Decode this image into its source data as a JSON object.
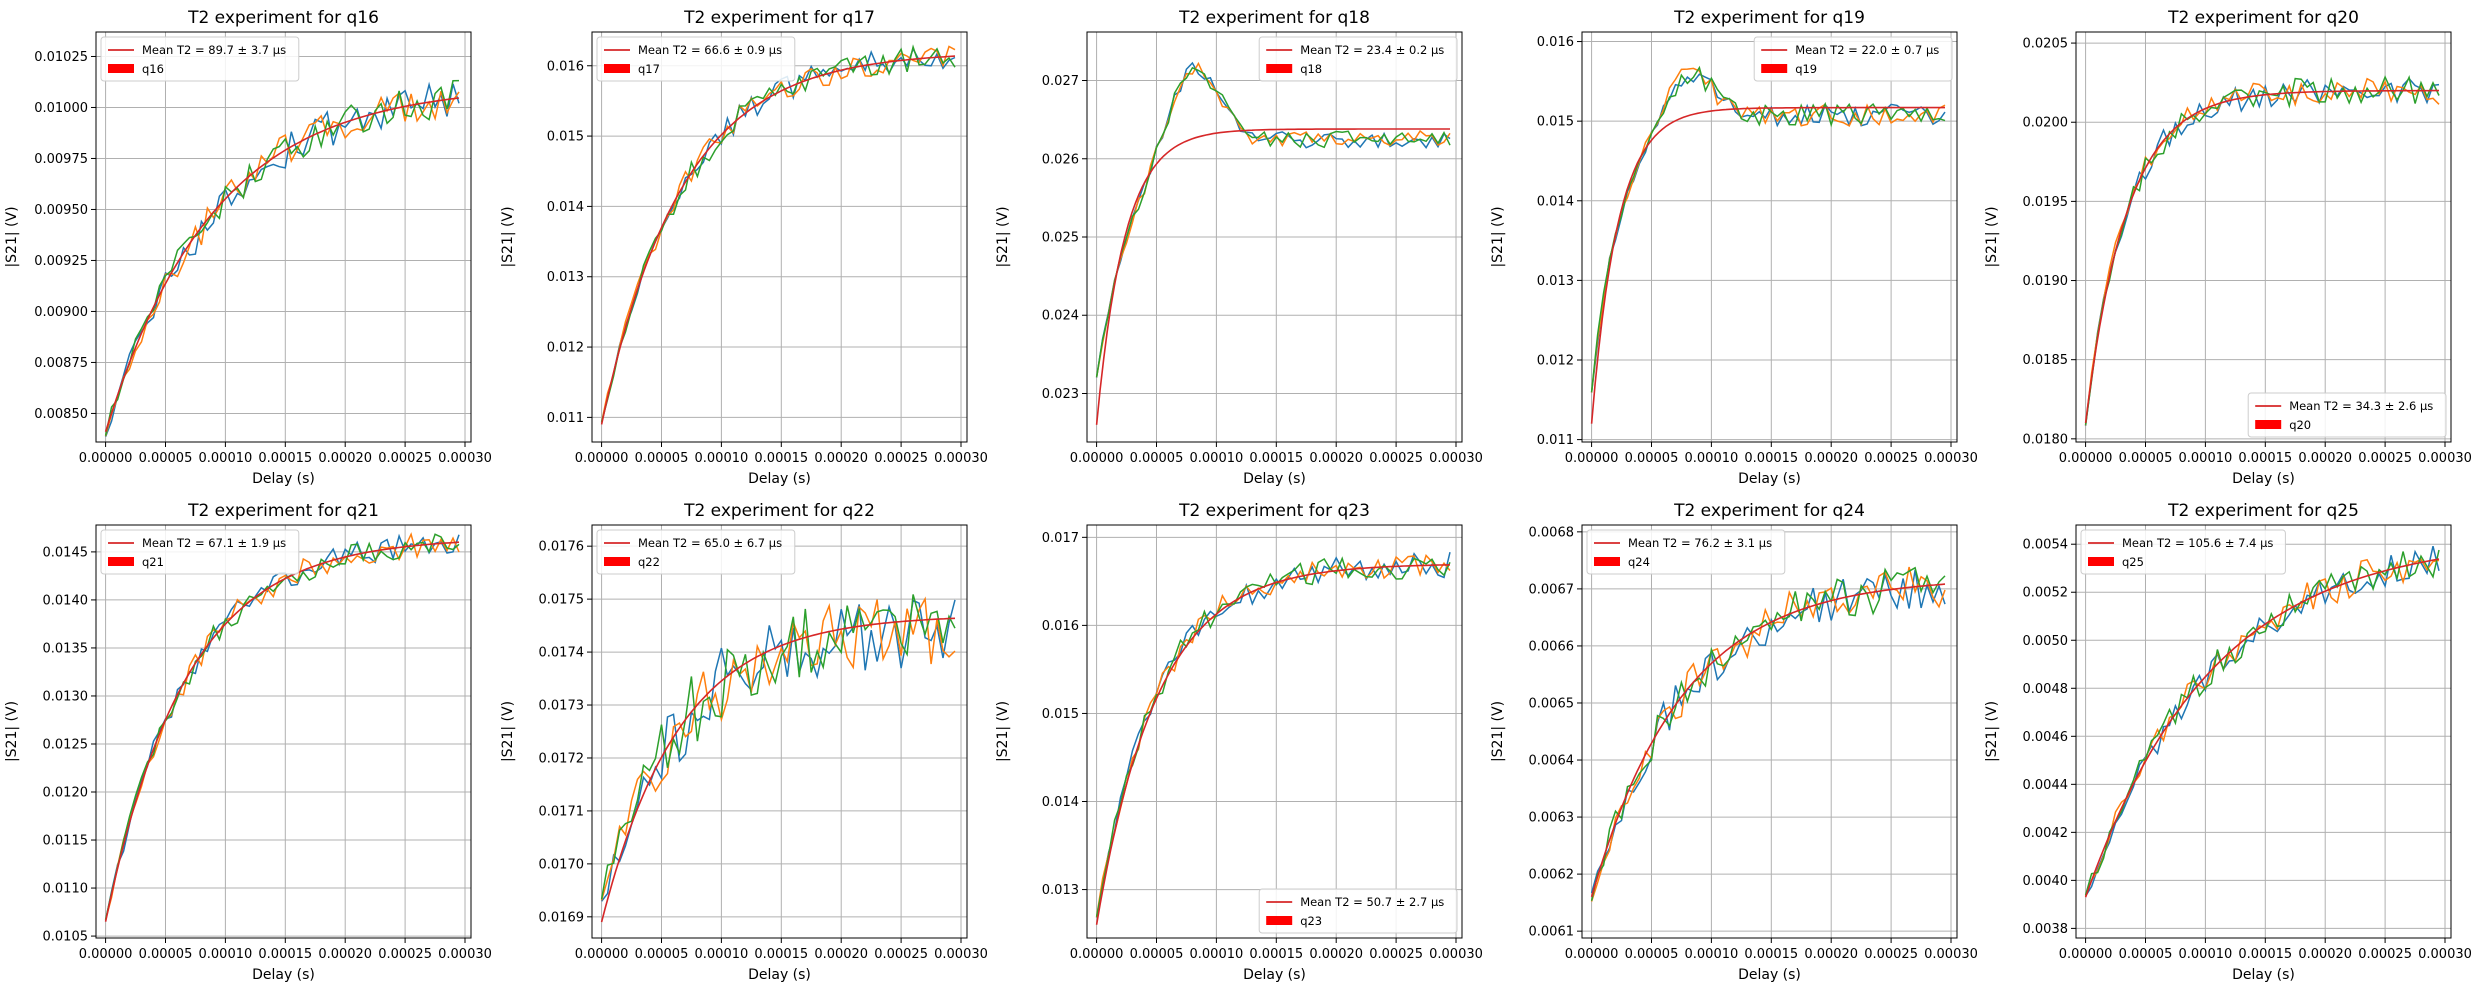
{
  "chart_data": [
    {
      "type": "line",
      "title": "T2 experiment for q16",
      "xlabel": "Delay (s)",
      "ylabel": "|S21| (V)",
      "legend_loc": "upper-left",
      "legend_fit": "Mean T2 = 89.7 ± 3.7 µs",
      "legend_qubit": "q16",
      "xlim": [
        -8e-06,
        0.000305
      ],
      "ylim": [
        0.00836,
        0.01037
      ],
      "xticks": [
        "0.00000",
        "0.00005",
        "0.00010",
        "0.00015",
        "0.00020",
        "0.00025",
        "0.00030"
      ],
      "yticks": [
        0.0085,
        0.00875,
        0.009,
        0.00925,
        0.0095,
        0.00975,
        0.01,
        0.01025
      ],
      "y_decimals": 5,
      "fit": {
        "start": 0.00841,
        "end": 0.01011,
        "tau": 8.97e-05
      },
      "series_params": {
        "start": 0.0084,
        "end": 0.01011,
        "tau": 8.97e-05,
        "noise": 9e-05,
        "overshoot": 0,
        "seed": 16
      }
    },
    {
      "type": "line",
      "title": "T2 experiment for q17",
      "xlabel": "Delay (s)",
      "ylabel": "|S21| (V)",
      "legend_loc": "upper-left",
      "legend_fit": "Mean T2 = 66.6 ± 0.9 µs",
      "legend_qubit": "q17",
      "xlim": [
        -8e-06,
        0.000305
      ],
      "ylim": [
        0.01065,
        0.01648
      ],
      "xticks": [
        "0.00000",
        "0.00005",
        "0.00010",
        "0.00015",
        "0.00020",
        "0.00025",
        "0.00030"
      ],
      "yticks": [
        0.011,
        0.012,
        0.013,
        0.014,
        0.015,
        0.016
      ],
      "y_decimals": 3,
      "fit": {
        "start": 0.0109,
        "end": 0.0162,
        "tau": 6.66e-05
      },
      "series_params": {
        "start": 0.0109,
        "end": 0.0162,
        "tau": 6.66e-05,
        "noise": 0.00018,
        "overshoot": 0,
        "seed": 17
      }
    },
    {
      "type": "line",
      "title": "T2 experiment for q18",
      "xlabel": "Delay (s)",
      "ylabel": "|S21| (V)",
      "legend_loc": "upper-right",
      "legend_fit": "Mean T2 = 23.4 ± 0.2 µs",
      "legend_qubit": "q18",
      "xlim": [
        -8e-06,
        0.000305
      ],
      "ylim": [
        0.02238,
        0.02762
      ],
      "xticks": [
        "0.00000",
        "0.00005",
        "0.00010",
        "0.00015",
        "0.00020",
        "0.00025",
        "0.00030"
      ],
      "yticks": [
        0.023,
        0.024,
        0.025,
        0.026,
        0.027
      ],
      "y_decimals": 3,
      "fit": {
        "start": 0.0226,
        "end": 0.02638,
        "tau": 2.34e-05
      },
      "series_params": {
        "start": 0.0232,
        "end": 0.02625,
        "tau": 3e-05,
        "noise": 0.00011,
        "overshoot": 0.0011,
        "seed": 18
      }
    },
    {
      "type": "line",
      "title": "T2 experiment for q19",
      "xlabel": "Delay (s)",
      "ylabel": "|S21| (V)",
      "legend_loc": "upper-right",
      "legend_fit": "Mean T2 = 22.0 ± 0.7 µs",
      "legend_qubit": "q19",
      "xlim": [
        -8e-06,
        0.000305
      ],
      "ylim": [
        0.01097,
        0.01612
      ],
      "xticks": [
        "0.00000",
        "0.00005",
        "0.00010",
        "0.00015",
        "0.00020",
        "0.00025",
        "0.00030"
      ],
      "yticks": [
        0.011,
        0.012,
        0.013,
        0.014,
        0.015,
        0.016
      ],
      "y_decimals": 3,
      "fit": {
        "start": 0.0112,
        "end": 0.01517,
        "tau": 2.2e-05
      },
      "series_params": {
        "start": 0.0116,
        "end": 0.01508,
        "tau": 2.4e-05,
        "noise": 0.00014,
        "overshoot": 0.0006,
        "seed": 19
      }
    },
    {
      "type": "line",
      "title": "T2 experiment for q20",
      "xlabel": "Delay (s)",
      "ylabel": "|S21| (V)",
      "legend_loc": "lower-right",
      "legend_fit": "Mean T2 = 34.3 ± 2.6 µs",
      "legend_qubit": "q20",
      "xlim": [
        -8e-06,
        0.000305
      ],
      "ylim": [
        0.01798,
        0.02057
      ],
      "xticks": [
        "0.00000",
        "0.00005",
        "0.00010",
        "0.00015",
        "0.00020",
        "0.00025",
        "0.00030"
      ],
      "yticks": [
        0.018,
        0.0185,
        0.019,
        0.0195,
        0.02,
        0.0205
      ],
      "y_decimals": 4,
      "fit": {
        "start": 0.0181,
        "end": 0.0202,
        "tau": 3.43e-05
      },
      "series_params": {
        "start": 0.0181,
        "end": 0.0202,
        "tau": 3.43e-05,
        "noise": 9e-05,
        "overshoot": 0,
        "seed": 20
      }
    },
    {
      "type": "line",
      "title": "T2 experiment for q21",
      "xlabel": "Delay (s)",
      "ylabel": "|S21| (V)",
      "legend_loc": "upper-left",
      "legend_fit": "Mean T2 = 67.1 ± 1.9 µs",
      "legend_qubit": "q21",
      "xlim": [
        -8e-06,
        0.000305
      ],
      "ylim": [
        0.01048,
        0.01478
      ],
      "xticks": [
        "0.00000",
        "0.00005",
        "0.00010",
        "0.00015",
        "0.00020",
        "0.00025",
        "0.00030"
      ],
      "yticks": [
        0.0105,
        0.011,
        0.0115,
        0.012,
        0.0125,
        0.013,
        0.0135,
        0.014,
        0.0145
      ],
      "y_decimals": 4,
      "fit": {
        "start": 0.01065,
        "end": 0.01465,
        "tau": 6.71e-05
      },
      "series_params": {
        "start": 0.01065,
        "end": 0.01465,
        "tau": 6.71e-05,
        "noise": 0.00013,
        "overshoot": 0,
        "seed": 21
      }
    },
    {
      "type": "line",
      "title": "T2 experiment for q22",
      "xlabel": "Delay (s)",
      "ylabel": "|S21| (V)",
      "legend_loc": "upper-left",
      "legend_fit": "Mean T2 = 65.0 ± 6.7 µs",
      "legend_qubit": "q22",
      "xlim": [
        -8e-06,
        0.000305
      ],
      "ylim": [
        0.01686,
        0.01764
      ],
      "xticks": [
        "0.00000",
        "0.00005",
        "0.00010",
        "0.00015",
        "0.00020",
        "0.00025",
        "0.00030"
      ],
      "yticks": [
        0.0169,
        0.017,
        0.0171,
        0.0172,
        0.0173,
        0.0174,
        0.0175,
        0.0176
      ],
      "y_decimals": 4,
      "fit": {
        "start": 0.01689,
        "end": 0.01747,
        "tau": 6.5e-05
      },
      "series_params": {
        "start": 0.01693,
        "end": 0.01745,
        "tau": 6.5e-05,
        "noise": 7e-05,
        "overshoot": 0,
        "seed": 22
      }
    },
    {
      "type": "line",
      "title": "T2 experiment for q23",
      "xlabel": "Delay (s)",
      "ylabel": "|S21| (V)",
      "legend_loc": "lower-right",
      "legend_fit": "Mean T2 = 50.7 ± 2.7 µs",
      "legend_qubit": "q23",
      "xlim": [
        -8e-06,
        0.000305
      ],
      "ylim": [
        0.01245,
        0.01714
      ],
      "xticks": [
        "0.00000",
        "0.00005",
        "0.00010",
        "0.00015",
        "0.00020",
        "0.00025",
        "0.00030"
      ],
      "yticks": [
        0.013,
        0.014,
        0.015,
        0.016,
        0.017
      ],
      "y_decimals": 3,
      "fit": {
        "start": 0.0126,
        "end": 0.0167,
        "tau": 5.07e-05
      },
      "series_params": {
        "start": 0.0127,
        "end": 0.0167,
        "tau": 5.07e-05,
        "noise": 0.00015,
        "overshoot": 0,
        "seed": 23
      }
    },
    {
      "type": "line",
      "title": "T2 experiment for q24",
      "xlabel": "Delay (s)",
      "ylabel": "|S21| (V)",
      "legend_loc": "upper-left",
      "legend_fit": "Mean T2 = 76.2 ± 3.1 µs",
      "legend_qubit": "q24",
      "xlim": [
        -8e-06,
        0.000305
      ],
      "ylim": [
        0.006088,
        0.006812
      ],
      "xticks": [
        "0.00000",
        "0.00005",
        "0.00010",
        "0.00015",
        "0.00020",
        "0.00025",
        "0.00030"
      ],
      "yticks": [
        0.0061,
        0.0062,
        0.0063,
        0.0064,
        0.0065,
        0.0066,
        0.0067,
        0.0068
      ],
      "y_decimals": 4,
      "fit": {
        "start": 0.00616,
        "end": 0.00672,
        "tau": 7.62e-05
      },
      "series_params": {
        "start": 0.00616,
        "end": 0.00672,
        "tau": 7.62e-05,
        "noise": 4e-05,
        "overshoot": 0,
        "seed": 24
      }
    },
    {
      "type": "line",
      "title": "T2 experiment for q25",
      "xlabel": "Delay (s)",
      "ylabel": "|S21| (V)",
      "legend_loc": "upper-left",
      "legend_fit": "Mean T2 = 105.6 ± 7.4 µs",
      "legend_qubit": "q25",
      "xlim": [
        -8e-06,
        0.000305
      ],
      "ylim": [
        0.00376,
        0.00548
      ],
      "xticks": [
        "0.00000",
        "0.00005",
        "0.00010",
        "0.00015",
        "0.00020",
        "0.00025",
        "0.00030"
      ],
      "yticks": [
        0.0038,
        0.004,
        0.0042,
        0.0044,
        0.0046,
        0.0048,
        0.005,
        0.0052,
        0.0054
      ],
      "y_decimals": 4,
      "fit": {
        "start": 0.00393,
        "end": 0.00543,
        "tau": 0.0001056
      },
      "series_params": {
        "start": 0.00393,
        "end": 0.00543,
        "tau": 0.0001056,
        "noise": 7e-05,
        "overshoot": 0,
        "seed": 25
      }
    }
  ],
  "colors": {
    "series": [
      "#1f77b4",
      "#ff7f0e",
      "#2ca02c"
    ],
    "fit": "#d62728",
    "legend_patch": "#ff0000",
    "grid": "#b0b0b0",
    "axes": "#000000"
  }
}
